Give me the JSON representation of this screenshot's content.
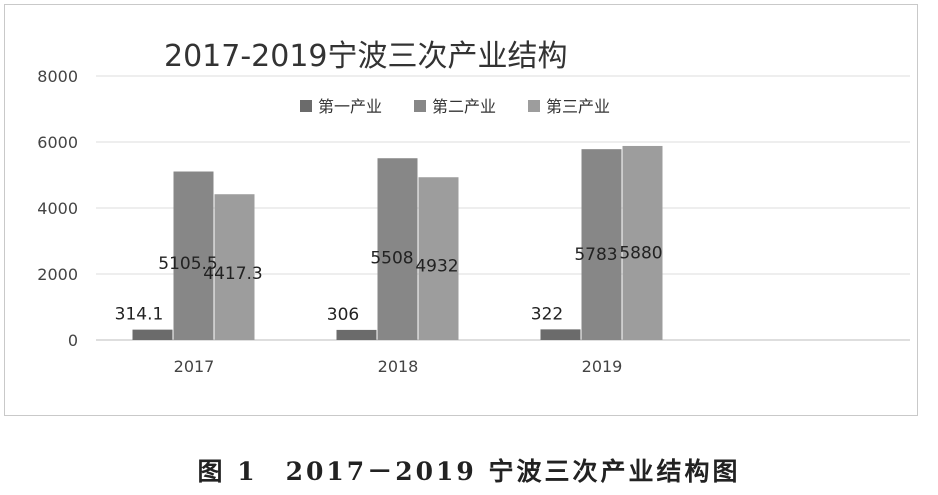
{
  "caption": "图 1　2017－2019 宁波三次产业结构图",
  "chart_data": {
    "type": "bar",
    "title": "2017-2019宁波三次产业结构",
    "xlabel": "",
    "ylabel": "",
    "categories": [
      "2017",
      "2018",
      "2019"
    ],
    "series": [
      {
        "name": "第一产业",
        "values": [
          314.1,
          306,
          322
        ],
        "labels": [
          "314.1",
          "306",
          "322"
        ],
        "color": "#6b6b6b"
      },
      {
        "name": "第二产业",
        "values": [
          5105.5,
          5508,
          5783
        ],
        "labels": [
          "5105.5",
          "5508",
          "5783"
        ],
        "color": "#878787"
      },
      {
        "name": "第三产业",
        "values": [
          4417.3,
          4932,
          5880
        ],
        "labels": [
          "4417.3",
          "4932",
          "5880"
        ],
        "color": "#9d9d9d"
      }
    ],
    "ylim": [
      0,
      8000
    ],
    "yticks": [
      0,
      2000,
      4000,
      6000,
      8000
    ],
    "grid": true,
    "legend_position": "top"
  }
}
